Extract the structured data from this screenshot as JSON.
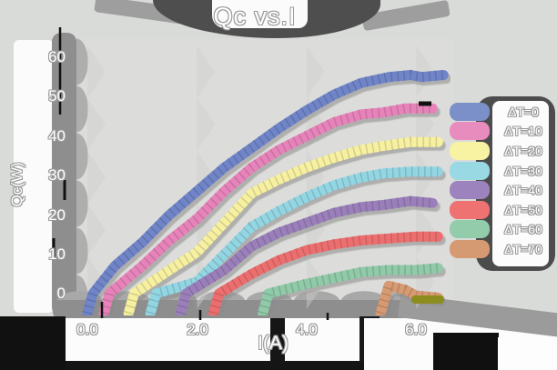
{
  "title": "Qc vs.I",
  "axes": {
    "x_label": "I(A)",
    "y_label": "Qc(W)",
    "x_ticks": [
      "0.0",
      "2.0",
      "4.0",
      "6.0"
    ],
    "y_ticks": [
      "60",
      "50",
      "40",
      "30",
      "20",
      "10",
      "0"
    ]
  },
  "legend": {
    "items": [
      {
        "label": "ΔT=0",
        "color": "#7b8fc9"
      },
      {
        "label": "ΔT=10",
        "color": "#e88bbd"
      },
      {
        "label": "ΔT=20",
        "color": "#f7f3a3"
      },
      {
        "label": "ΔT=30",
        "color": "#98d9e4"
      },
      {
        "label": "ΔT=40",
        "color": "#9d83bd"
      },
      {
        "label": "ΔT=50",
        "color": "#ee7272"
      },
      {
        "label": "ΔT=60",
        "color": "#93ccaa"
      },
      {
        "label": "ΔT=70",
        "color": "#d69a72"
      }
    ]
  },
  "chart_data": {
    "type": "line",
    "title": "Qc vs.I",
    "xlabel": "I(A)",
    "ylabel": "Qc(W)",
    "xlim": [
      -0.3,
      6.6
    ],
    "ylim": [
      -5,
      65
    ],
    "x_tick_values": [
      0,
      2,
      4,
      6
    ],
    "y_tick_values": [
      0,
      10,
      20,
      30,
      40,
      50,
      60
    ],
    "grid": false,
    "legend_position": "right",
    "style": "hand-drawn marker bands",
    "series": [
      {
        "name": "ΔT=0",
        "delta_t": 0,
        "color": "#6f84c8",
        "points": [
          [
            0,
            -5
          ],
          [
            0.1,
            0
          ],
          [
            0.5,
            7
          ],
          [
            1,
            13
          ],
          [
            1.5,
            20
          ],
          [
            2,
            26
          ],
          [
            2.5,
            32
          ],
          [
            3,
            37
          ],
          [
            3.5,
            42
          ],
          [
            4,
            46.5
          ],
          [
            4.5,
            50.5
          ],
          [
            5,
            53.5
          ],
          [
            5.5,
            55
          ],
          [
            5.9,
            55.5
          ],
          [
            6.1,
            55
          ],
          [
            6.5,
            55.5
          ]
        ]
      },
      {
        "name": "ΔT=10",
        "delta_t": 10,
        "color": "#e783ba",
        "points": [
          [
            0.3,
            -5
          ],
          [
            0.4,
            0
          ],
          [
            1,
            7
          ],
          [
            1.5,
            13.5
          ],
          [
            2,
            19
          ],
          [
            2.5,
            26
          ],
          [
            3,
            32
          ],
          [
            3.5,
            36.5
          ],
          [
            4,
            40
          ],
          [
            4.5,
            43.5
          ],
          [
            5,
            45.5
          ],
          [
            5.4,
            46
          ],
          [
            5.8,
            47
          ],
          [
            6.3,
            47
          ]
        ]
      },
      {
        "name": "ΔT=20",
        "delta_t": 20,
        "color": "#f6f0a0",
        "points": [
          [
            0.75,
            -5
          ],
          [
            0.85,
            0
          ],
          [
            1.5,
            6
          ],
          [
            2,
            10.5
          ],
          [
            2.5,
            18
          ],
          [
            3,
            25.5
          ],
          [
            3.5,
            29
          ],
          [
            4,
            32
          ],
          [
            4.5,
            34.5
          ],
          [
            5,
            36.5
          ],
          [
            5.4,
            37.5
          ],
          [
            5.9,
            38.5
          ],
          [
            6.4,
            38.5
          ]
        ]
      },
      {
        "name": "ΔT=30",
        "delta_t": 30,
        "color": "#93d6e3",
        "points": [
          [
            1.15,
            -5
          ],
          [
            1.25,
            0
          ],
          [
            2,
            3
          ],
          [
            2.5,
            10
          ],
          [
            3,
            17
          ],
          [
            3.5,
            21
          ],
          [
            4,
            24.5
          ],
          [
            4.5,
            27.5
          ],
          [
            5,
            29.5
          ],
          [
            5.4,
            30.5
          ],
          [
            5.9,
            31
          ],
          [
            6.4,
            31
          ]
        ]
      },
      {
        "name": "ΔT=40",
        "delta_t": 40,
        "color": "#9a7fba",
        "points": [
          [
            1.7,
            -5
          ],
          [
            1.8,
            0
          ],
          [
            2.5,
            6
          ],
          [
            3,
            12
          ],
          [
            3.5,
            15.5
          ],
          [
            4,
            18
          ],
          [
            4.5,
            20.5
          ],
          [
            5,
            22
          ],
          [
            5.4,
            22.5
          ],
          [
            5.9,
            23.5
          ],
          [
            6.3,
            23
          ]
        ]
      },
      {
        "name": "ΔT=50",
        "delta_t": 50,
        "color": "#ed6e6e",
        "points": [
          [
            2.3,
            -5
          ],
          [
            2.4,
            0
          ],
          [
            3,
            5
          ],
          [
            3.5,
            8.5
          ],
          [
            4,
            11
          ],
          [
            4.5,
            12.5
          ],
          [
            5,
            13.5
          ],
          [
            5.5,
            14
          ],
          [
            6,
            14.5
          ],
          [
            6.4,
            14.5
          ]
        ]
      },
      {
        "name": "ΔT=60",
        "delta_t": 60,
        "color": "#90caa8",
        "points": [
          [
            3.2,
            -5
          ],
          [
            3.3,
            0
          ],
          [
            4,
            2.5
          ],
          [
            4.5,
            4
          ],
          [
            5,
            5.5
          ],
          [
            5.5,
            6
          ],
          [
            6,
            6
          ],
          [
            6.4,
            6.5
          ]
        ]
      },
      {
        "name": "ΔT=70",
        "delta_t": 70,
        "color": "#d79a72",
        "points": [
          [
            5.35,
            -5
          ],
          [
            5.5,
            2
          ],
          [
            5.8,
            1
          ],
          [
            6,
            -0.5
          ],
          [
            6.4,
            -1
          ]
        ]
      }
    ]
  },
  "colors": {
    "background": "#d8dbd7",
    "plot_background": "#dcdcda",
    "ink_dark": "#4c4c4c",
    "band_gray": "#8e8e8e",
    "text_fill": "#ffffff",
    "text_outline": "#9a9a9a",
    "artifact_olive": "#8d8d1f"
  }
}
